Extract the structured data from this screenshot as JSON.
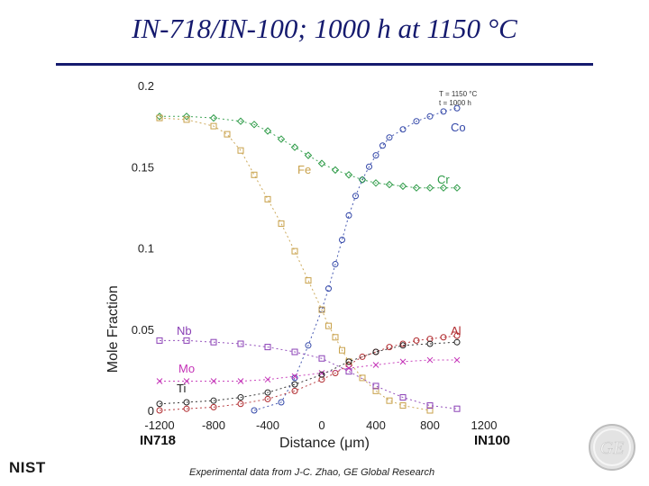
{
  "title": "IN-718/IN-100; 1000 h at 1150 °C",
  "caption": "Experimental data from J-C. Zhao, GE Global Research",
  "logos": {
    "left": "NIST",
    "right": "GE"
  },
  "chart_data": {
    "type": "scatter",
    "xlabel": "Distance (μm)",
    "ylabel": "Mole Fraction",
    "xlim": [
      -1200,
      1200
    ],
    "ylim": [
      0,
      0.2
    ],
    "xticks": [
      "-1200",
      "-800",
      "-400",
      "0",
      "400",
      "800",
      "1200"
    ],
    "yticks": [
      "0",
      "0.05",
      "0.1",
      "0.15",
      "0.2"
    ],
    "side_labels": {
      "left": "IN718",
      "right": "IN100"
    },
    "conditions": [
      "T = 1150 °C",
      "t = 1000 h"
    ],
    "grid": false,
    "series": [
      {
        "name": "Co",
        "color": "#3347a8",
        "x": [
          -500,
          -300,
          -200,
          -100,
          0,
          50,
          100,
          150,
          200,
          250,
          300,
          350,
          400,
          450,
          500,
          600,
          700,
          800,
          900,
          1000
        ],
        "y": [
          0.0,
          0.005,
          0.02,
          0.04,
          0.062,
          0.075,
          0.09,
          0.105,
          0.12,
          0.132,
          0.142,
          0.15,
          0.157,
          0.163,
          0.168,
          0.173,
          0.178,
          0.181,
          0.184,
          0.186
        ]
      },
      {
        "name": "Cr",
        "color": "#2c9a46",
        "x": [
          -1200,
          -1000,
          -800,
          -600,
          -500,
          -400,
          -300,
          -200,
          -100,
          0,
          100,
          200,
          300,
          400,
          500,
          600,
          700,
          800,
          900,
          1000
        ],
        "y": [
          0.181,
          0.181,
          0.18,
          0.178,
          0.176,
          0.172,
          0.167,
          0.162,
          0.157,
          0.152,
          0.148,
          0.145,
          0.142,
          0.14,
          0.139,
          0.138,
          0.137,
          0.137,
          0.137,
          0.137
        ]
      },
      {
        "name": "Fe",
        "color": "#c8a14a",
        "x": [
          -1200,
          -1000,
          -800,
          -700,
          -600,
          -500,
          -400,
          -300,
          -200,
          -100,
          0,
          50,
          100,
          150,
          200,
          300,
          400,
          500,
          600,
          800
        ],
        "y": [
          0.18,
          0.179,
          0.175,
          0.17,
          0.16,
          0.145,
          0.13,
          0.115,
          0.098,
          0.08,
          0.062,
          0.052,
          0.045,
          0.037,
          0.03,
          0.02,
          0.012,
          0.006,
          0.003,
          0.0
        ]
      },
      {
        "name": "Al",
        "color": "#b0292d",
        "x": [
          -1200,
          -1000,
          -800,
          -600,
          -400,
          -200,
          0,
          100,
          200,
          300,
          400,
          500,
          600,
          700,
          800,
          900,
          1000
        ],
        "y": [
          0.0,
          0.001,
          0.002,
          0.004,
          0.007,
          0.012,
          0.019,
          0.023,
          0.028,
          0.033,
          0.036,
          0.039,
          0.041,
          0.043,
          0.044,
          0.045,
          0.046
        ]
      },
      {
        "name": "Nb",
        "color": "#8a3fb5",
        "x": [
          -1200,
          -1000,
          -800,
          -600,
          -400,
          -200,
          0,
          200,
          400,
          600,
          800,
          1000
        ],
        "y": [
          0.043,
          0.043,
          0.042,
          0.041,
          0.039,
          0.036,
          0.032,
          0.024,
          0.015,
          0.008,
          0.003,
          0.001
        ]
      },
      {
        "name": "Mo",
        "color": "#c433b7",
        "x": [
          -1200,
          -1000,
          -800,
          -600,
          -400,
          -200,
          0,
          200,
          400,
          600,
          800,
          1000
        ],
        "y": [
          0.018,
          0.018,
          0.018,
          0.018,
          0.019,
          0.021,
          0.023,
          0.026,
          0.028,
          0.03,
          0.031,
          0.031
        ]
      },
      {
        "name": "Ti",
        "color": "#222222",
        "x": [
          -1200,
          -1000,
          -800,
          -600,
          -400,
          -200,
          0,
          200,
          400,
          600,
          800,
          1000
        ],
        "y": [
          0.004,
          0.005,
          0.006,
          0.008,
          0.011,
          0.016,
          0.022,
          0.03,
          0.036,
          0.04,
          0.041,
          0.042
        ]
      }
    ]
  }
}
